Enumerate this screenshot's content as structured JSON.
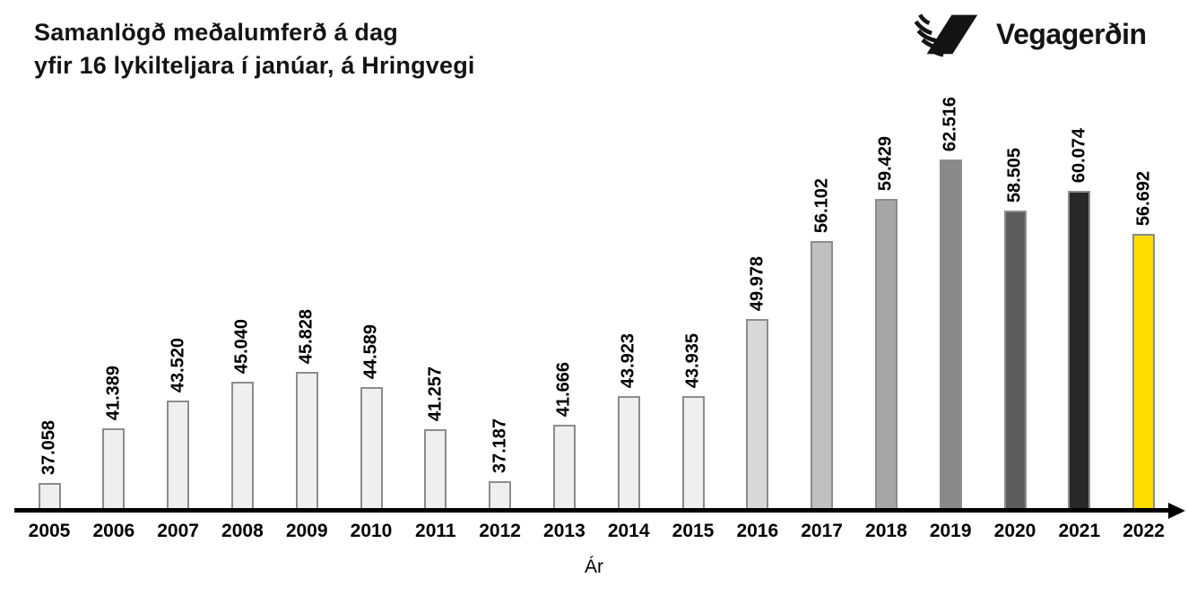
{
  "title": {
    "line1": "Samanlögð meðalumferð á dag",
    "line2": "yfir 16 lykilteljara í janúar, á Hringvegi"
  },
  "logo": {
    "text": "Vegagerðin"
  },
  "chart_data": {
    "type": "bar",
    "title": "Samanlögð meðalumferð á dag yfir 16 lykilteljara í janúar, á Hringvegi",
    "xlabel": "Ár",
    "ylabel": "",
    "categories": [
      "2005",
      "2006",
      "2007",
      "2008",
      "2009",
      "2010",
      "2011",
      "2012",
      "2013",
      "2014",
      "2015",
      "2016",
      "2017",
      "2018",
      "2019",
      "2020",
      "2021",
      "2022"
    ],
    "values": [
      37058,
      41389,
      43520,
      45040,
      45828,
      44589,
      41257,
      37187,
      41666,
      43923,
      43935,
      49978,
      56102,
      59429,
      62516,
      58505,
      60074,
      56692
    ],
    "value_labels": [
      "37.058",
      "41.389",
      "43.520",
      "45.040",
      "45.828",
      "44.589",
      "41.257",
      "37.187",
      "41.666",
      "43.923",
      "43.935",
      "49.978",
      "56.102",
      "59.429",
      "62.516",
      "58.505",
      "60.074",
      "56.692"
    ],
    "bar_colors": [
      "#efefef",
      "#efefef",
      "#efefef",
      "#efefef",
      "#efefef",
      "#efefef",
      "#efefef",
      "#efefef",
      "#efefef",
      "#efefef",
      "#efefef",
      "#d8d8d8",
      "#c0c0c0",
      "#a6a6a6",
      "#8a8a8a",
      "#5d5d5d",
      "#282828",
      "#ffdd00"
    ],
    "bar_border_color": "#8c8c8c",
    "axis_color": "#000000",
    "highlight_category": "2022",
    "highlight_color": "#ffdd00",
    "ylim": [
      34870,
      63500
    ],
    "grid": false,
    "legend": false
  }
}
